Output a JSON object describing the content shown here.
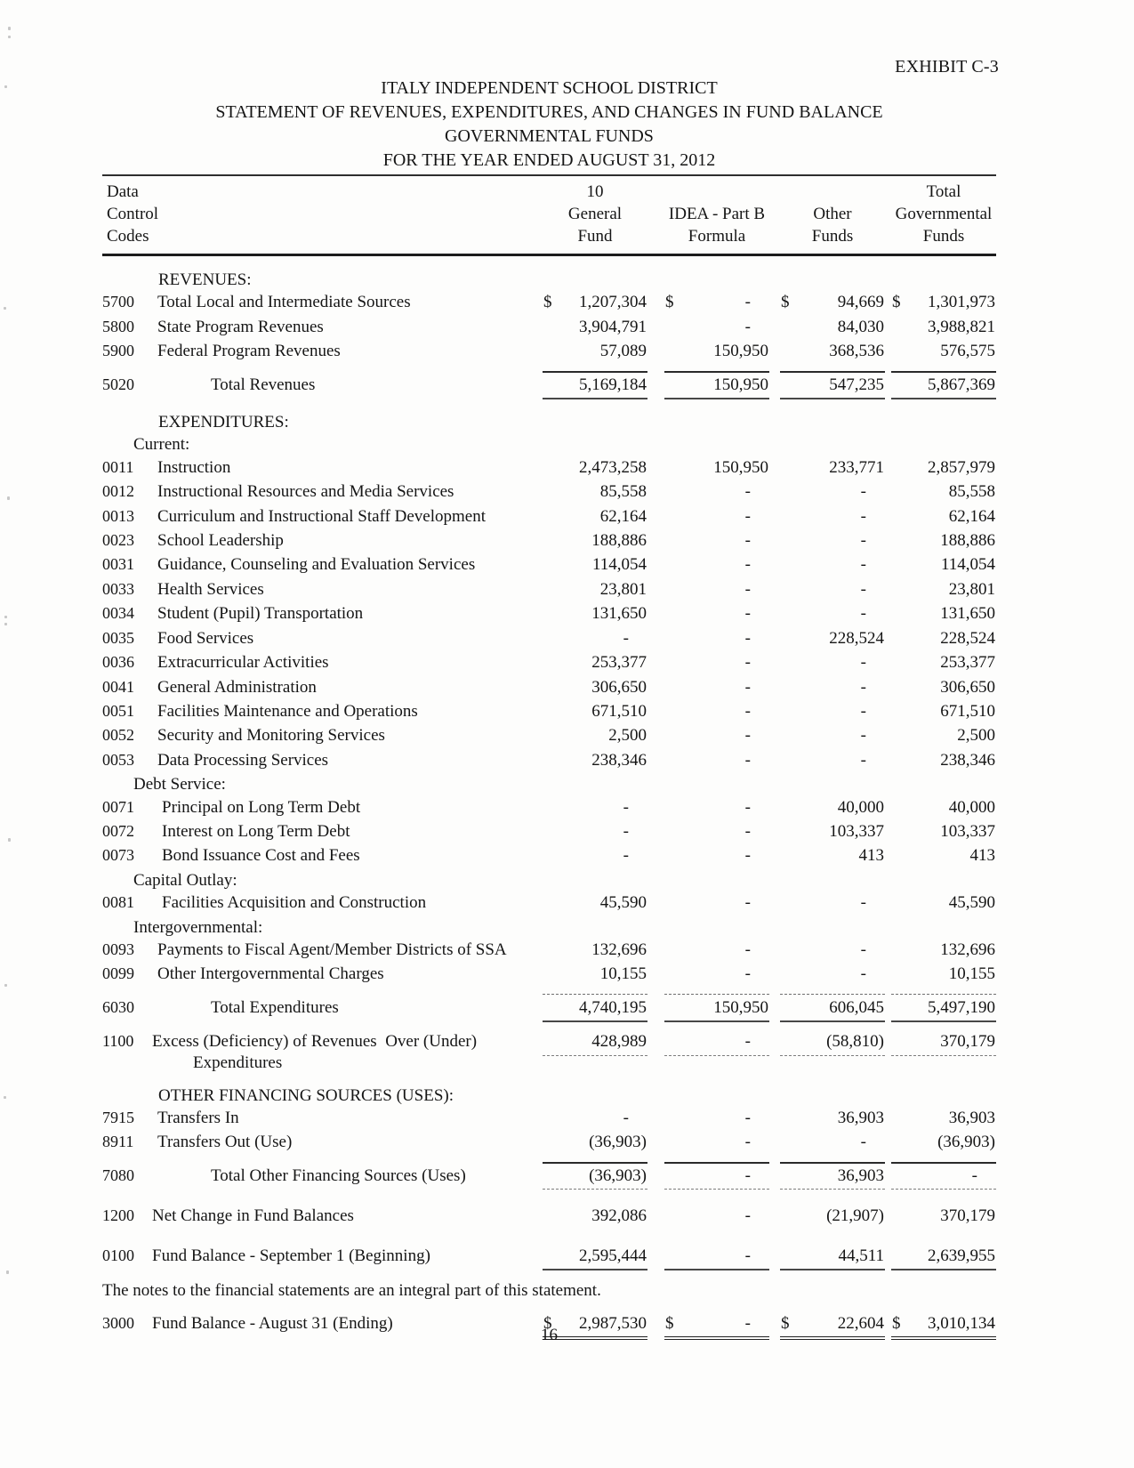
{
  "colors": {
    "paper": "#fdfdfc",
    "ink": "#151515"
  },
  "exhibit": "EXHIBIT C-3",
  "title_lines": [
    "ITALY INDEPENDENT SCHOOL DISTRICT",
    "STATEMENT OF REVENUES, EXPENDITURES, AND CHANGES IN FUND BALANCE",
    "GOVERNMENTAL FUNDS",
    "FOR THE YEAR ENDED AUGUST 31, 2012"
  ],
  "table": {
    "header": {
      "left": [
        "Data",
        "Control",
        "Codes"
      ],
      "columns": [
        {
          "lines": [
            "10",
            "General",
            "Fund"
          ]
        },
        {
          "lines": [
            "",
            "IDEA - Part B",
            "Formula"
          ]
        },
        {
          "lines": [
            "",
            "Other",
            "Funds"
          ]
        },
        {
          "lines": [
            "Total",
            "Governmental",
            "Funds"
          ]
        }
      ]
    },
    "rows": [
      {
        "t": "section",
        "label": "REVENUES:"
      },
      {
        "t": "item",
        "code": "5700",
        "label": "Total Local and Intermediate Sources",
        "d": true,
        "v": [
          "1,207,304",
          "-",
          "94,669",
          "1,301,973"
        ]
      },
      {
        "t": "item",
        "code": "5800",
        "label": "State Program Revenues",
        "v": [
          "3,904,791",
          "-",
          "84,030",
          "3,988,821"
        ]
      },
      {
        "t": "item",
        "code": "5900",
        "label": "Federal Program Revenues",
        "v": [
          "57,089",
          "150,950",
          "368,536",
          "576,575"
        ]
      },
      {
        "t": "total",
        "code": "5020",
        "label": "Total Revenues",
        "ra": "s",
        "rb": "s",
        "v": [
          "5,169,184",
          "150,950",
          "547,235",
          "5,867,369"
        ]
      },
      {
        "t": "section",
        "cls": "gA",
        "label": "EXPENDITURES:"
      },
      {
        "t": "sub",
        "label": "Current:"
      },
      {
        "t": "item",
        "code": "0011",
        "label": "Instruction",
        "v": [
          "2,473,258",
          "150,950",
          "233,771",
          "2,857,979"
        ]
      },
      {
        "t": "item",
        "code": "0012",
        "label": "Instructional Resources and Media Services",
        "v": [
          "85,558",
          "-",
          "-",
          "85,558"
        ]
      },
      {
        "t": "item",
        "code": "0013",
        "label": "Curriculum and Instructional Staff Development",
        "v": [
          "62,164",
          "-",
          "-",
          "62,164"
        ]
      },
      {
        "t": "item",
        "code": "0023",
        "label": "School Leadership",
        "v": [
          "188,886",
          "-",
          "-",
          "188,886"
        ]
      },
      {
        "t": "item",
        "code": "0031",
        "label": "Guidance, Counseling and Evaluation Services",
        "v": [
          "114,054",
          "-",
          "-",
          "114,054"
        ]
      },
      {
        "t": "item",
        "code": "0033",
        "label": "Health Services",
        "v": [
          "23,801",
          "-",
          "-",
          "23,801"
        ]
      },
      {
        "t": "item",
        "code": "0034",
        "label": "Student (Pupil) Transportation",
        "v": [
          "131,650",
          "-",
          "-",
          "131,650"
        ]
      },
      {
        "t": "item",
        "code": "0035",
        "label": "Food Services",
        "v": [
          "-",
          "-",
          "228,524",
          "228,524"
        ]
      },
      {
        "t": "item",
        "code": "0036",
        "label": "Extracurricular Activities",
        "v": [
          "253,377",
          "-",
          "-",
          "253,377"
        ]
      },
      {
        "t": "item",
        "code": "0041",
        "label": "General Administration",
        "v": [
          "306,650",
          "-",
          "-",
          "306,650"
        ]
      },
      {
        "t": "item",
        "code": "0051",
        "label": "Facilities Maintenance and Operations",
        "v": [
          "671,510",
          "-",
          "-",
          "671,510"
        ]
      },
      {
        "t": "item",
        "code": "0052",
        "label": "Security and Monitoring Services",
        "v": [
          "2,500",
          "-",
          "-",
          "2,500"
        ]
      },
      {
        "t": "item",
        "code": "0053",
        "label": "Data Processing Services",
        "v": [
          "238,346",
          "-",
          "-",
          "238,346"
        ]
      },
      {
        "t": "sub",
        "label": "Debt Service:"
      },
      {
        "t": "item",
        "cls": "ind",
        "code": "0071",
        "label": "Principal on Long Term Debt",
        "v": [
          "-",
          "-",
          "40,000",
          "40,000"
        ]
      },
      {
        "t": "item",
        "cls": "ind",
        "code": "0072",
        "label": "Interest on Long Term Debt",
        "v": [
          "-",
          "-",
          "103,337",
          "103,337"
        ]
      },
      {
        "t": "item",
        "cls": "ind",
        "code": "0073",
        "label": "Bond Issuance Cost and Fees",
        "v": [
          "-",
          "-",
          "413",
          "413"
        ]
      },
      {
        "t": "sub",
        "label": "Capital Outlay:"
      },
      {
        "t": "item",
        "cls": "ind",
        "code": "0081",
        "label": "Facilities Acquisition and Construction",
        "v": [
          "45,590",
          "-",
          "-",
          "45,590"
        ]
      },
      {
        "t": "sub",
        "label": "Intergovernmental:"
      },
      {
        "t": "item",
        "code": "0093",
        "label": "Payments to Fiscal Agent/Member Districts of SSA",
        "v": [
          "132,696",
          "-",
          "-",
          "132,696"
        ]
      },
      {
        "t": "item",
        "code": "0099",
        "label": "Other Intergovernmental Charges",
        "v": [
          "10,155",
          "-",
          "-",
          "10,155"
        ]
      },
      {
        "t": "total",
        "code": "6030",
        "label": "Total Expenditures",
        "ra": "f",
        "rb": "s",
        "v": [
          "4,740,195",
          "150,950",
          "606,045",
          "5,497,190"
        ]
      },
      {
        "t": "item",
        "cls": "big xrow",
        "code": "1100",
        "label": "Excess (Deficiency) of Revenues  Over (Under)",
        "label2": "Expenditures",
        "rb": "f",
        "v": [
          "428,989",
          "-",
          "(58,810)",
          "370,179"
        ]
      },
      {
        "t": "section",
        "cls": "gA",
        "label": "OTHER FINANCING SOURCES (USES):"
      },
      {
        "t": "item",
        "code": "7915",
        "label": "Transfers In",
        "v": [
          "-",
          "-",
          "36,903",
          "36,903"
        ]
      },
      {
        "t": "item",
        "code": "8911",
        "label": "Transfers Out (Use)",
        "v": [
          "(36,903)",
          "-",
          "-",
          "(36,903)"
        ]
      },
      {
        "t": "total",
        "code": "7080",
        "label": "Total Other Financing Sources (Uses)",
        "ra": "s",
        "rb": "f",
        "v": [
          "(36,903)",
          "-",
          "36,903",
          "-"
        ]
      },
      {
        "t": "item",
        "cls": "big gB",
        "code": "1200",
        "label": "Net Change in Fund Balances",
        "v": [
          "392,086",
          "-",
          "(21,907)",
          "370,179"
        ]
      },
      {
        "t": "item",
        "cls": "big gB",
        "code": "0100",
        "label": "Fund Balance - September 1 (Beginning)",
        "rb": "s",
        "v": [
          "2,595,444",
          "-",
          "44,511",
          "2,639,955"
        ]
      },
      {
        "t": "item",
        "cls": "big gC",
        "code": "3000",
        "label": "Fund Balance - August 31 (Ending)",
        "d": true,
        "rb": "d",
        "v": [
          "2,987,530",
          "-",
          "22,604",
          "3,010,134"
        ]
      }
    ]
  },
  "footer": {
    "note": "The notes to the financial statements are an integral part of this statement.",
    "page_number": "16"
  }
}
